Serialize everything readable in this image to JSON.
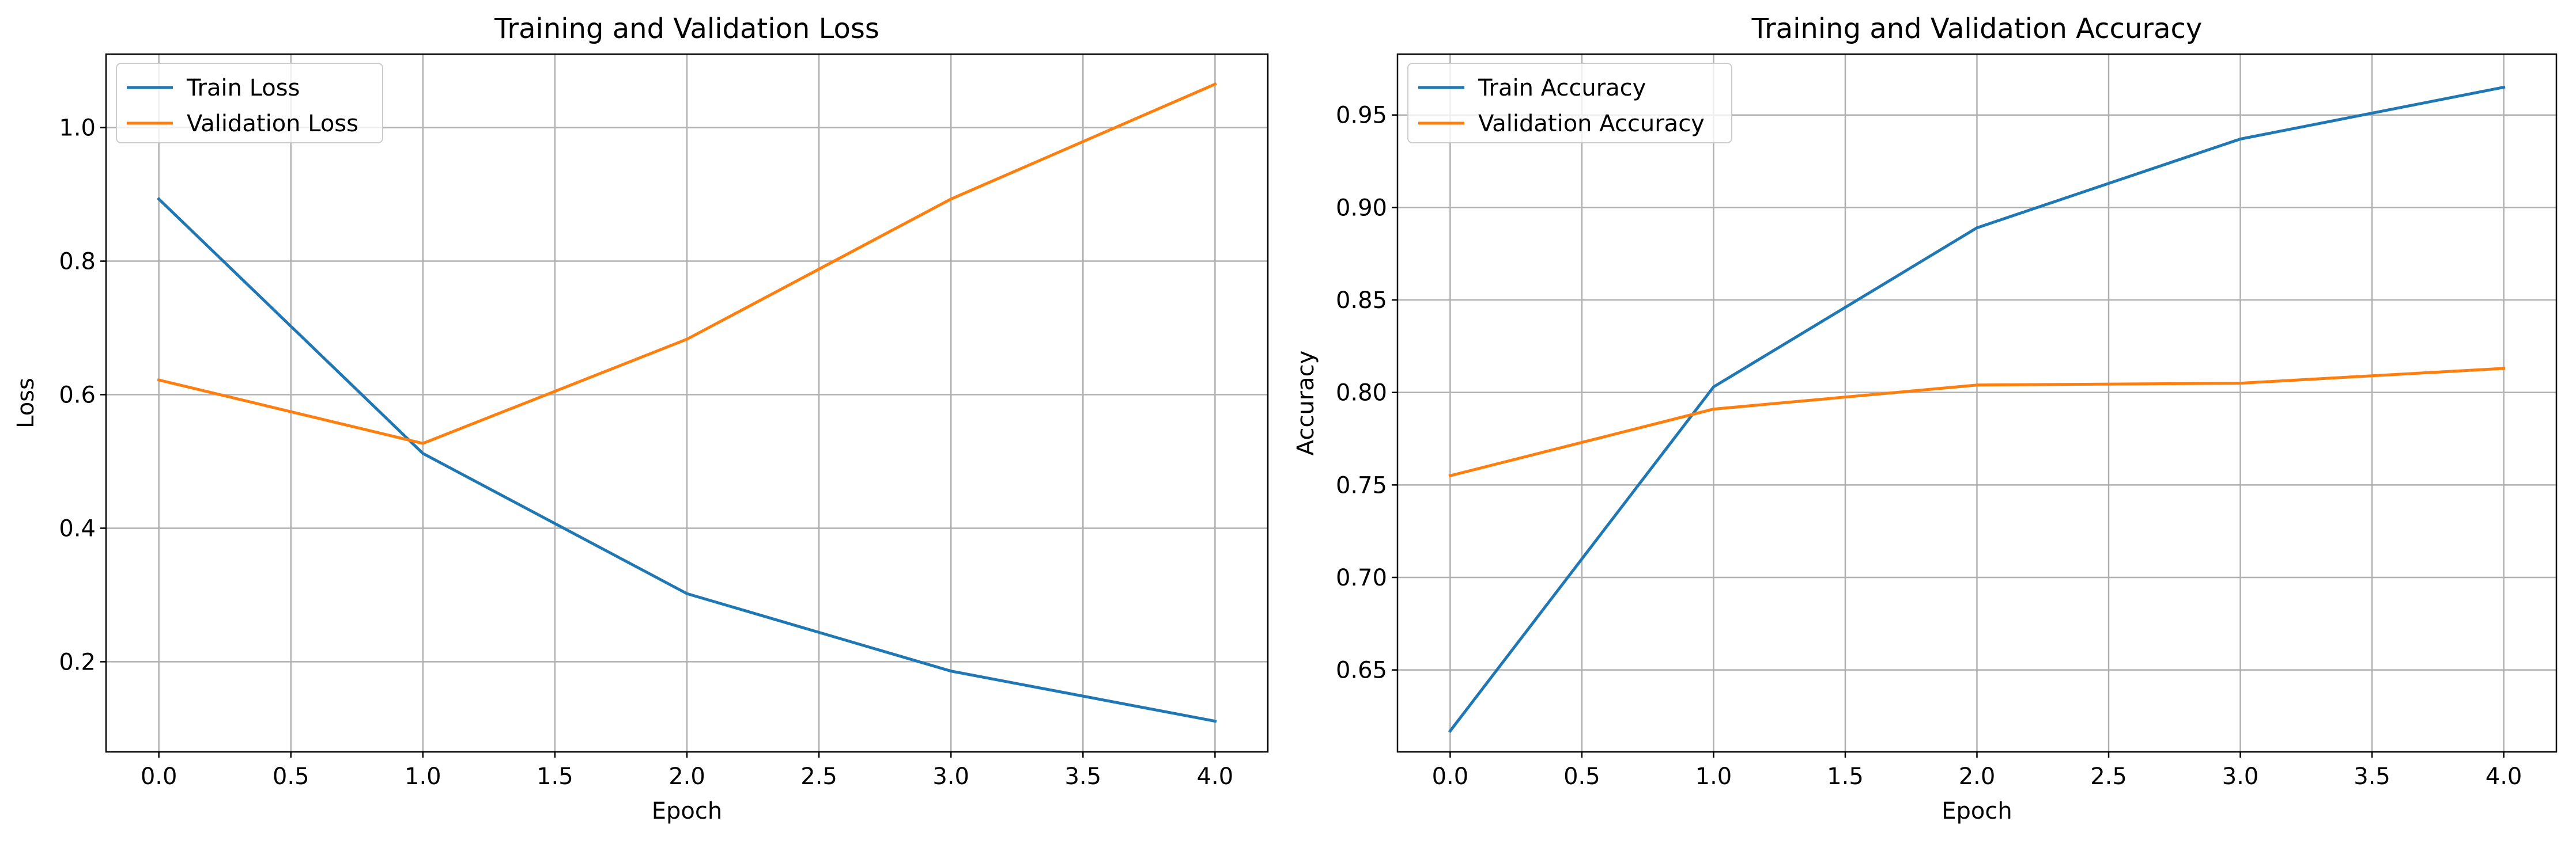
{
  "colors": {
    "train": "#1f77b4",
    "validation": "#ff7f0e",
    "grid": "#b0b0b0",
    "axis": "#000000"
  },
  "chart_data": [
    {
      "type": "line",
      "title": "Training and Validation Loss",
      "xlabel": "Epoch",
      "ylabel": "Loss",
      "x": [
        0,
        1,
        2,
        3,
        4
      ],
      "xlim": [
        -0.2,
        4.2
      ],
      "ylim": [
        0.065,
        1.11
      ],
      "xticks": [
        0.0,
        0.5,
        1.0,
        1.5,
        2.0,
        2.5,
        3.0,
        3.5,
        4.0
      ],
      "xtick_labels": [
        "0.0",
        "0.5",
        "1.0",
        "1.5",
        "2.0",
        "2.5",
        "3.0",
        "3.5",
        "4.0"
      ],
      "yticks": [
        0.2,
        0.4,
        0.6,
        0.8,
        1.0
      ],
      "ytick_labels": [
        "0.2",
        "0.4",
        "0.6",
        "0.8",
        "1.0"
      ],
      "grid": true,
      "legend_position": "upper-left",
      "series": [
        {
          "name": "Train Loss",
          "color": "#1f77b4",
          "values": [
            0.893,
            0.512,
            0.302,
            0.186,
            0.111
          ]
        },
        {
          "name": "Validation Loss",
          "color": "#ff7f0e",
          "values": [
            0.622,
            0.527,
            0.683,
            0.893,
            1.065
          ]
        }
      ]
    },
    {
      "type": "line",
      "title": "Training and Validation Accuracy",
      "xlabel": "Epoch",
      "ylabel": "Accuracy",
      "x": [
        0,
        1,
        2,
        3,
        4
      ],
      "xlim": [
        -0.2,
        4.2
      ],
      "ylim": [
        0.6057,
        0.9829
      ],
      "xticks": [
        0.0,
        0.5,
        1.0,
        1.5,
        2.0,
        2.5,
        3.0,
        3.5,
        4.0
      ],
      "xtick_labels": [
        "0.0",
        "0.5",
        "1.0",
        "1.5",
        "2.0",
        "2.5",
        "3.0",
        "3.5",
        "4.0"
      ],
      "yticks": [
        0.65,
        0.7,
        0.75,
        0.8,
        0.85,
        0.9,
        0.95
      ],
      "ytick_labels": [
        "0.65",
        "0.70",
        "0.75",
        "0.80",
        "0.85",
        "0.90",
        "0.95"
      ],
      "grid": true,
      "legend_position": "upper-left",
      "series": [
        {
          "name": "Train Accuracy",
          "color": "#1f77b4",
          "values": [
            0.617,
            0.803,
            0.889,
            0.937,
            0.965
          ]
        },
        {
          "name": "Validation Accuracy",
          "color": "#ff7f0e",
          "values": [
            0.755,
            0.791,
            0.804,
            0.805,
            0.813
          ]
        }
      ]
    }
  ]
}
